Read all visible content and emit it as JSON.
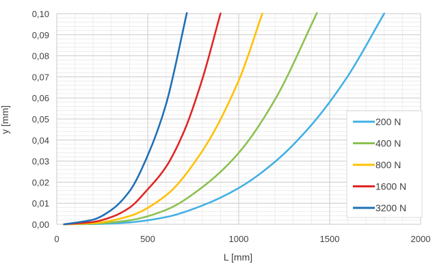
{
  "chart_data": {
    "type": "line",
    "xlabel": "L [mm]",
    "ylabel": "y [mm]",
    "xlim": [
      0,
      2000
    ],
    "ylim": [
      0,
      0.1
    ],
    "x_ticks": [
      "0",
      "500",
      "1000",
      "1500",
      "2000"
    ],
    "y_ticks": [
      "0,00",
      "0,01",
      "0,02",
      "0,03",
      "0,04",
      "0,05",
      "0,06",
      "0,07",
      "0,08",
      "0,09",
      "0,10"
    ],
    "grid": "major and minor",
    "legend_position": "right",
    "series": [
      {
        "name": "200 N",
        "color": "#41b0e4",
        "x": [
          40,
          200,
          400,
          600,
          800,
          1000,
          1200,
          1400,
          1600,
          1800
        ],
        "y": [
          0.0,
          0.0001,
          0.0009,
          0.0034,
          0.0089,
          0.0172,
          0.0297,
          0.0472,
          0.0704,
          0.1001
        ]
      },
      {
        "name": "400 N",
        "color": "#8cc152",
        "x": [
          40,
          200,
          400,
          600,
          800,
          1000,
          1200,
          1430
        ],
        "y": [
          0.0,
          0.0003,
          0.0019,
          0.0068,
          0.0176,
          0.0339,
          0.0593,
          0.1003
        ]
      },
      {
        "name": "800 N",
        "color": "#ffc000",
        "x": [
          40,
          200,
          400,
          600,
          800,
          1000,
          1130
        ],
        "y": [
          0.0,
          0.0005,
          0.0039,
          0.0137,
          0.0348,
          0.0682,
          0.1001
        ]
      },
      {
        "name": "1600 N",
        "color": "#e02424",
        "x": [
          40,
          200,
          300,
          400,
          500,
          600,
          700,
          800,
          900
        ],
        "y": [
          0.0,
          0.0011,
          0.0034,
          0.0079,
          0.0166,
          0.0272,
          0.0442,
          0.0689,
          0.1001
        ]
      },
      {
        "name": "3200 N",
        "color": "#1f6fb5",
        "x": [
          40,
          200,
          300,
          400,
          500,
          600,
          715
        ],
        "y": [
          0.0,
          0.0022,
          0.0068,
          0.0157,
          0.0327,
          0.0568,
          0.1003
        ]
      }
    ]
  }
}
